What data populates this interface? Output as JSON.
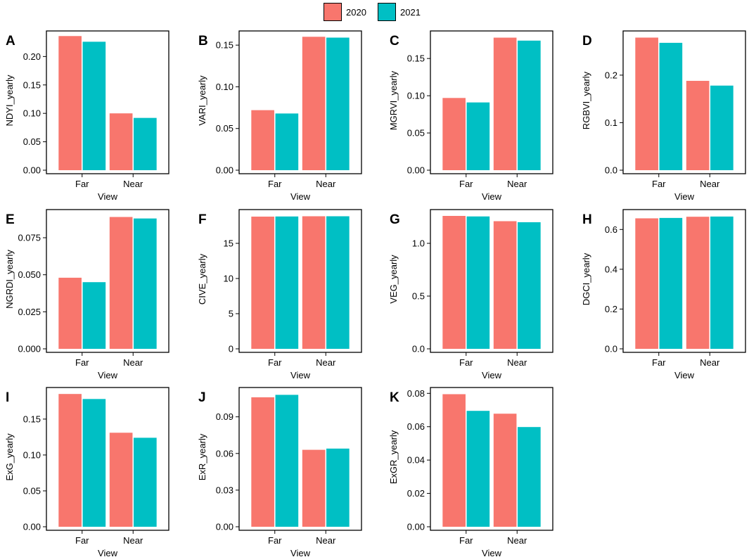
{
  "legend": {
    "items": [
      {
        "label": "2020",
        "color": "#F8766D"
      },
      {
        "label": "2021",
        "color": "#00BFC4"
      }
    ]
  },
  "chart_data": [
    {
      "type": "bar",
      "panel_label": "A",
      "ylabel": "NDYI_yearly",
      "xlabel": "View",
      "categories": [
        "Far",
        "Near"
      ],
      "ylim": [
        0,
        0.245
      ],
      "yticks": [
        "0.00",
        "0.05",
        "0.10",
        "0.15",
        "0.20"
      ],
      "series": [
        {
          "name": "2020",
          "values": [
            0.236,
            0.1
          ]
        },
        {
          "name": "2021",
          "values": [
            0.226,
            0.092
          ]
        }
      ]
    },
    {
      "type": "bar",
      "panel_label": "B",
      "ylabel": "VARI_yearly",
      "xlabel": "View",
      "categories": [
        "Far",
        "Near"
      ],
      "ylim": [
        0,
        0.167
      ],
      "yticks": [
        "0.00",
        "0.05",
        "0.10",
        "0.15"
      ],
      "series": [
        {
          "name": "2020",
          "values": [
            0.072,
            0.16
          ]
        },
        {
          "name": "2021",
          "values": [
            0.068,
            0.159
          ]
        }
      ]
    },
    {
      "type": "bar",
      "panel_label": "C",
      "ylabel": "MGRVI_yearly",
      "xlabel": "View",
      "categories": [
        "Far",
        "Near"
      ],
      "ylim": [
        0,
        0.187
      ],
      "yticks": [
        "0.00",
        "0.05",
        "0.10",
        "0.15"
      ],
      "series": [
        {
          "name": "2020",
          "values": [
            0.097,
            0.178
          ]
        },
        {
          "name": "2021",
          "values": [
            0.091,
            0.174
          ]
        }
      ]
    },
    {
      "type": "bar",
      "panel_label": "D",
      "ylabel": "RGBVI_yearly",
      "xlabel": "View",
      "categories": [
        "Far",
        "Near"
      ],
      "ylim": [
        0,
        0.293
      ],
      "yticks": [
        "0.0",
        "0.1",
        "0.2"
      ],
      "series": [
        {
          "name": "2020",
          "values": [
            0.279,
            0.188
          ]
        },
        {
          "name": "2021",
          "values": [
            0.268,
            0.178
          ]
        }
      ]
    },
    {
      "type": "bar",
      "panel_label": "E",
      "ylabel": "NGRDI_yearly",
      "xlabel": "View",
      "categories": [
        "Far",
        "Near"
      ],
      "ylim": [
        0,
        0.094
      ],
      "yticks": [
        "0.000",
        "0.025",
        "0.050",
        "0.075"
      ],
      "series": [
        {
          "name": "2020",
          "values": [
            0.048,
            0.089
          ]
        },
        {
          "name": "2021",
          "values": [
            0.045,
            0.088
          ]
        }
      ]
    },
    {
      "type": "bar",
      "panel_label": "F",
      "ylabel": "CIVE_yearly",
      "xlabel": "View",
      "categories": [
        "Far",
        "Near"
      ],
      "ylim": [
        0,
        19.8
      ],
      "yticks": [
        "0",
        "5",
        "10",
        "15"
      ],
      "series": [
        {
          "name": "2020",
          "values": [
            18.8,
            18.85
          ]
        },
        {
          "name": "2021",
          "values": [
            18.82,
            18.85
          ]
        }
      ]
    },
    {
      "type": "bar",
      "panel_label": "G",
      "ylabel": "VEG_yearly",
      "xlabel": "View",
      "categories": [
        "Far",
        "Near"
      ],
      "ylim": [
        0,
        1.32
      ],
      "yticks": [
        "0.0",
        "0.5",
        "1.0"
      ],
      "series": [
        {
          "name": "2020",
          "values": [
            1.26,
            1.21
          ]
        },
        {
          "name": "2021",
          "values": [
            1.255,
            1.2
          ]
        }
      ]
    },
    {
      "type": "bar",
      "panel_label": "H",
      "ylabel": "DGCI_yearly",
      "xlabel": "View",
      "categories": [
        "Far",
        "Near"
      ],
      "ylim": [
        0,
        0.7
      ],
      "yticks": [
        "0.0",
        "0.2",
        "0.4",
        "0.6"
      ],
      "series": [
        {
          "name": "2020",
          "values": [
            0.656,
            0.664
          ]
        },
        {
          "name": "2021",
          "values": [
            0.658,
            0.665
          ]
        }
      ]
    },
    {
      "type": "bar",
      "panel_label": "I",
      "ylabel": "ExG_yearly",
      "xlabel": "View",
      "categories": [
        "Far",
        "Near"
      ],
      "ylim": [
        0,
        0.194
      ],
      "yticks": [
        "0.00",
        "0.05",
        "0.10",
        "0.15"
      ],
      "series": [
        {
          "name": "2020",
          "values": [
            0.185,
            0.131
          ]
        },
        {
          "name": "2021",
          "values": [
            0.178,
            0.124
          ]
        }
      ]
    },
    {
      "type": "bar",
      "panel_label": "J",
      "ylabel": "ExR_yearly",
      "xlabel": "View",
      "categories": [
        "Far",
        "Near"
      ],
      "ylim": [
        0,
        0.114
      ],
      "yticks": [
        "0.00",
        "0.03",
        "0.06",
        "0.09"
      ],
      "series": [
        {
          "name": "2020",
          "values": [
            0.106,
            0.063
          ]
        },
        {
          "name": "2021",
          "values": [
            0.108,
            0.064
          ]
        }
      ]
    },
    {
      "type": "bar",
      "panel_label": "K",
      "ylabel": "ExGR_yearly",
      "xlabel": "View",
      "categories": [
        "Far",
        "Near"
      ],
      "ylim": [
        0,
        0.0835
      ],
      "yticks": [
        "0.00",
        "0.02",
        "0.04",
        "0.06",
        "0.08"
      ],
      "series": [
        {
          "name": "2020",
          "values": [
            0.0795,
            0.0678
          ]
        },
        {
          "name": "2021",
          "values": [
            0.0695,
            0.0598
          ]
        }
      ]
    }
  ]
}
